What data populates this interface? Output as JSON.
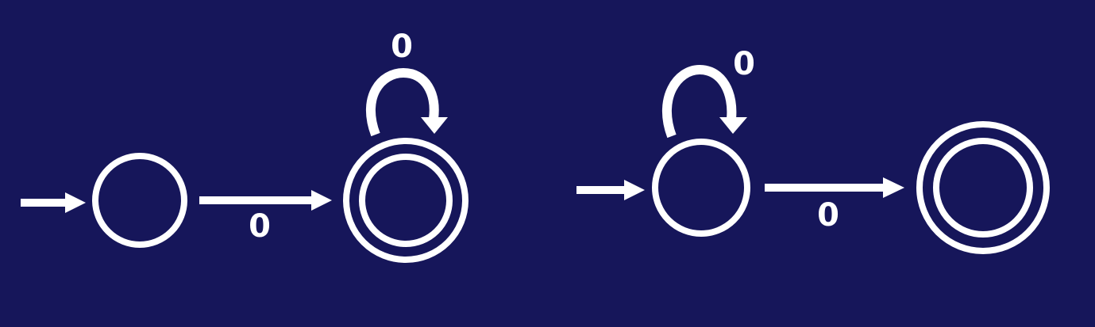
{
  "background_color": "#16165a",
  "foreground_color": "#ffffff",
  "diagrams": [
    {
      "states": [
        {
          "id": "q0",
          "start": true,
          "accepting": false
        },
        {
          "id": "q1",
          "start": false,
          "accepting": true
        }
      ],
      "transitions": [
        {
          "from": "q0",
          "to": "q1",
          "label": "0"
        },
        {
          "from": "q1",
          "to": "q1",
          "label": "0"
        }
      ]
    },
    {
      "states": [
        {
          "id": "q0",
          "start": true,
          "accepting": false
        },
        {
          "id": "q1",
          "start": false,
          "accepting": true
        }
      ],
      "transitions": [
        {
          "from": "q0",
          "to": "q0",
          "label": "0"
        },
        {
          "from": "q0",
          "to": "q1",
          "label": "0"
        }
      ]
    }
  ]
}
